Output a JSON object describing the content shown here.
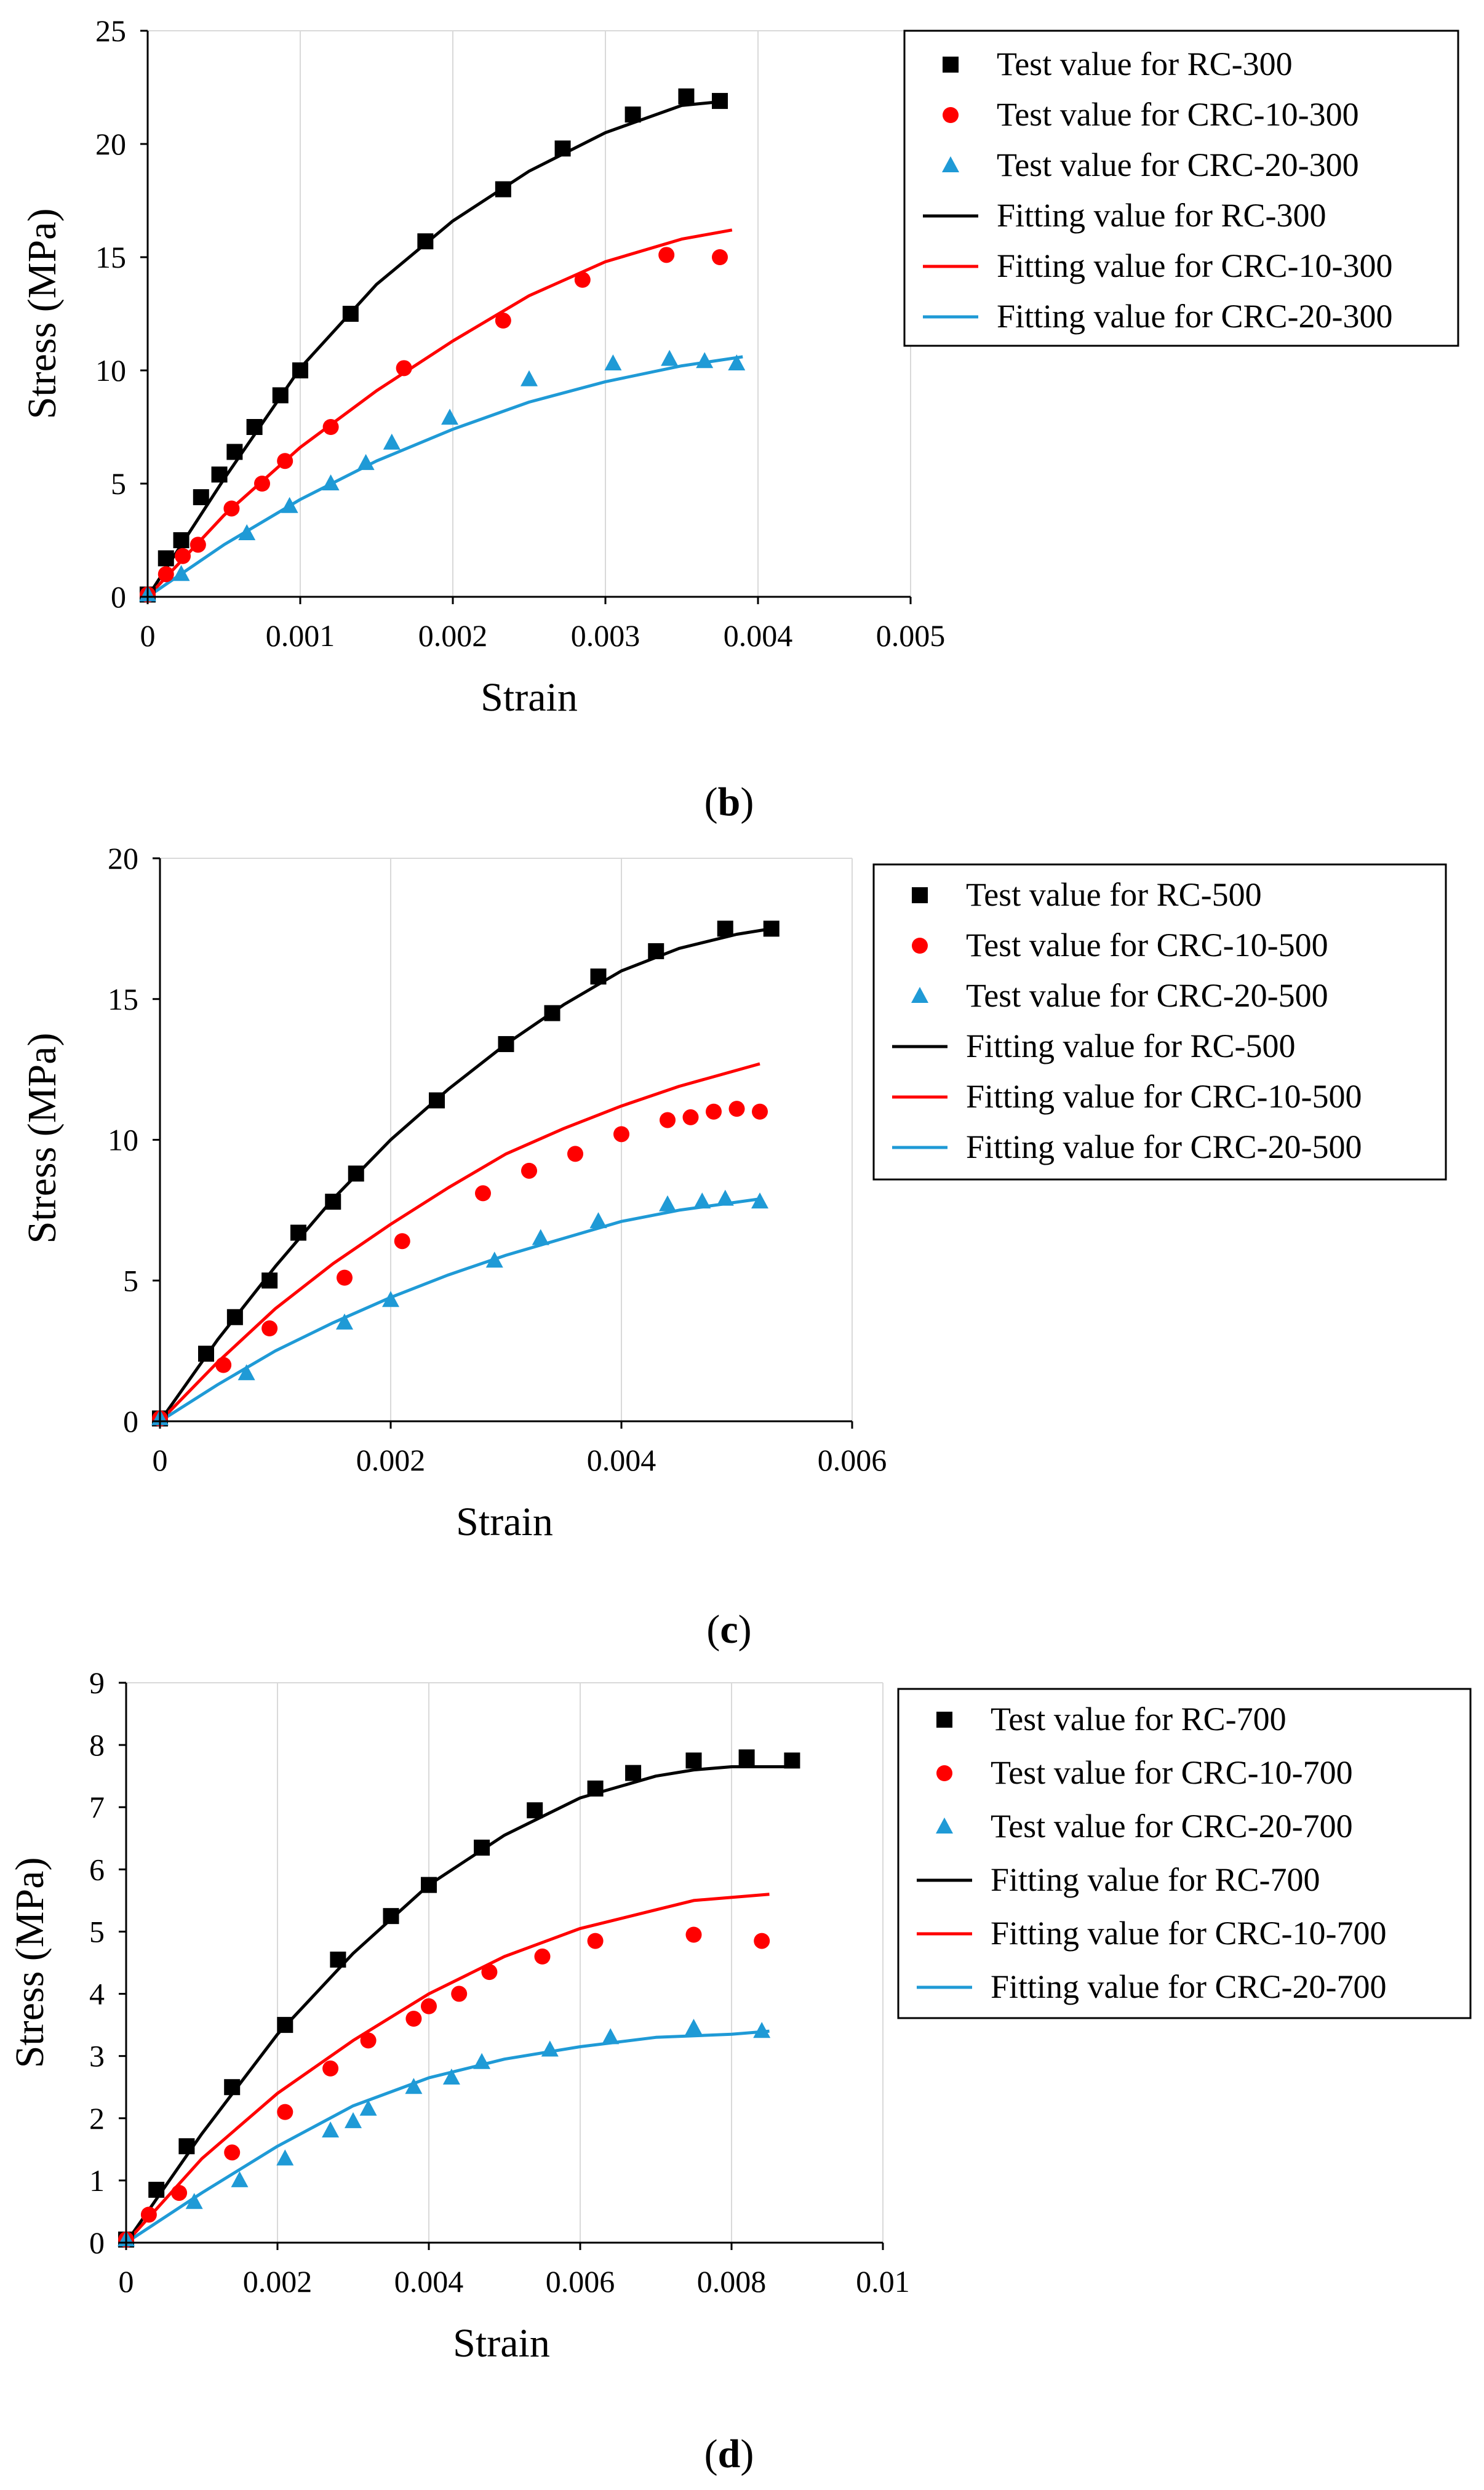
{
  "colors": {
    "black_series": "#000000",
    "red_series": "#ff0000",
    "blue_series": "#1f9ad6",
    "grid": "#d9d9d9",
    "axis": "#000000"
  },
  "chart_data": [
    {
      "panel_label": "b",
      "type": "scatter",
      "xlabel": "Strain",
      "ylabel": "Stress (MPa)",
      "xlim": [
        0,
        0.005
      ],
      "ylim": [
        0,
        25
      ],
      "xticks": [
        0,
        0.001,
        0.002,
        0.003,
        0.004,
        0.005
      ],
      "xtick_labels": [
        "0",
        "0.001",
        "0.002",
        "0.003",
        "0.004",
        "0.005"
      ],
      "yticks": [
        0,
        5,
        10,
        15,
        20,
        25
      ],
      "ytick_labels": [
        "0",
        "5",
        "10",
        "15",
        "20",
        "25"
      ],
      "grid": "vertical",
      "legend_position": "right",
      "series": [
        {
          "name": "Test value for RC-300",
          "kind": "marker",
          "marker": "square",
          "color": "#000000",
          "x": [
            0,
            0.00012,
            0.00022,
            0.00035,
            0.00047,
            0.00057,
            0.0007,
            0.00087,
            0.001,
            0.00133,
            0.00182,
            0.00233,
            0.00272,
            0.00318,
            0.00353,
            0.00375
          ],
          "y": [
            0.1,
            1.7,
            2.5,
            4.4,
            5.4,
            6.4,
            7.5,
            8.9,
            10.0,
            12.5,
            15.7,
            18.0,
            19.8,
            21.3,
            22.1,
            21.9
          ]
        },
        {
          "name": "Test value for CRC-10-300",
          "kind": "marker",
          "marker": "circle",
          "color": "#ff0000",
          "x": [
            0,
            0.00012,
            0.00023,
            0.00033,
            0.00055,
            0.00075,
            0.0009,
            0.0012,
            0.00168,
            0.00233,
            0.00285,
            0.0034,
            0.00375
          ],
          "y": [
            0.1,
            1.0,
            1.8,
            2.3,
            3.9,
            5.0,
            6.0,
            7.5,
            10.1,
            12.2,
            14.0,
            15.1,
            15.0
          ]
        },
        {
          "name": "Test value for CRC-20-300",
          "kind": "marker",
          "marker": "triangle",
          "color": "#1f9ad6",
          "x": [
            0,
            0.00022,
            0.00065,
            0.00093,
            0.0012,
            0.00143,
            0.0016,
            0.00198,
            0.0025,
            0.00305,
            0.00342,
            0.00365,
            0.00386
          ],
          "y": [
            0.1,
            1.0,
            2.8,
            4.0,
            5.0,
            5.9,
            6.8,
            7.9,
            9.6,
            10.3,
            10.5,
            10.4,
            10.3
          ]
        },
        {
          "name": "Fitting value for RC-300",
          "kind": "line",
          "color": "#000000",
          "x": [
            0,
            0.0005,
            0.001,
            0.0015,
            0.002,
            0.0025,
            0.003,
            0.0035,
            0.0038
          ],
          "y": [
            0,
            5.2,
            10.1,
            13.8,
            16.6,
            18.8,
            20.5,
            21.7,
            21.9
          ]
        },
        {
          "name": "Fitting value for CRC-10-300",
          "kind": "line",
          "color": "#ff0000",
          "x": [
            0,
            0.0005,
            0.001,
            0.0015,
            0.002,
            0.0025,
            0.003,
            0.0035,
            0.00383
          ],
          "y": [
            0,
            3.6,
            6.6,
            9.1,
            11.3,
            13.3,
            14.8,
            15.8,
            16.2
          ]
        },
        {
          "name": "Fitting value for CRC-20-300",
          "kind": "line",
          "color": "#1f9ad6",
          "x": [
            0,
            0.0005,
            0.001,
            0.0015,
            0.002,
            0.0025,
            0.003,
            0.0035,
            0.0039
          ],
          "y": [
            0,
            2.3,
            4.3,
            6.0,
            7.4,
            8.6,
            9.5,
            10.2,
            10.6
          ]
        }
      ]
    },
    {
      "panel_label": "c",
      "type": "scatter",
      "xlabel": "Strain",
      "ylabel": "Stress (MPa)",
      "xlim": [
        0,
        0.006
      ],
      "ylim": [
        0,
        20
      ],
      "xticks": [
        0,
        0.002,
        0.004,
        0.006
      ],
      "xtick_labels": [
        "0",
        "0.002",
        "0.004",
        "0.006"
      ],
      "yticks": [
        0,
        5,
        10,
        15,
        20
      ],
      "ytick_labels": [
        "0",
        "5",
        "10",
        "15",
        "20"
      ],
      "grid": "vertical",
      "legend_position": "right",
      "series": [
        {
          "name": "Test value for RC-500",
          "kind": "marker",
          "marker": "square",
          "color": "#000000",
          "x": [
            0,
            0.0004,
            0.00065,
            0.00095,
            0.0012,
            0.0015,
            0.0017,
            0.0024,
            0.003,
            0.0034,
            0.0038,
            0.0043,
            0.0049,
            0.0053
          ],
          "y": [
            0.1,
            2.4,
            3.7,
            5.0,
            6.7,
            7.8,
            8.8,
            11.4,
            13.4,
            14.5,
            15.8,
            16.7,
            17.5,
            17.5
          ]
        },
        {
          "name": "Test value for CRC-10-500",
          "kind": "marker",
          "marker": "circle",
          "color": "#ff0000",
          "x": [
            0,
            0.00055,
            0.00095,
            0.0016,
            0.0021,
            0.0028,
            0.0032,
            0.0036,
            0.004,
            0.0044,
            0.0046,
            0.0048,
            0.005,
            0.0052
          ],
          "y": [
            0.1,
            2.0,
            3.3,
            5.1,
            6.4,
            8.1,
            8.9,
            9.5,
            10.2,
            10.7,
            10.8,
            11.0,
            11.1,
            11.0
          ]
        },
        {
          "name": "Test value for CRC-20-500",
          "kind": "marker",
          "marker": "triangle",
          "color": "#1f9ad6",
          "x": [
            0,
            0.00075,
            0.0016,
            0.002,
            0.0029,
            0.0033,
            0.0038,
            0.0044,
            0.0047,
            0.0049,
            0.0052
          ],
          "y": [
            0.1,
            1.7,
            3.5,
            4.3,
            5.7,
            6.5,
            7.1,
            7.7,
            7.8,
            7.9,
            7.8
          ]
        },
        {
          "name": "Fitting value for RC-500",
          "kind": "line",
          "color": "#000000",
          "x": [
            0,
            0.0005,
            0.001,
            0.0015,
            0.002,
            0.0025,
            0.003,
            0.0035,
            0.004,
            0.0045,
            0.005,
            0.0053
          ],
          "y": [
            0,
            2.9,
            5.5,
            7.9,
            10.0,
            11.8,
            13.4,
            14.8,
            16.0,
            16.8,
            17.3,
            17.5
          ]
        },
        {
          "name": "Fitting value for CRC-10-500",
          "kind": "line",
          "color": "#ff0000",
          "x": [
            0,
            0.0005,
            0.001,
            0.0015,
            0.002,
            0.0025,
            0.003,
            0.0035,
            0.004,
            0.0045,
            0.0052
          ],
          "y": [
            0,
            2.1,
            4.0,
            5.6,
            7.0,
            8.3,
            9.5,
            10.4,
            11.2,
            11.9,
            12.7
          ]
        },
        {
          "name": "Fitting value for CRC-20-500",
          "kind": "line",
          "color": "#1f9ad6",
          "x": [
            0,
            0.0005,
            0.001,
            0.0015,
            0.002,
            0.0025,
            0.003,
            0.0035,
            0.004,
            0.0045,
            0.0052
          ],
          "y": [
            0,
            1.3,
            2.5,
            3.5,
            4.4,
            5.2,
            5.9,
            6.5,
            7.1,
            7.5,
            7.9
          ]
        }
      ]
    },
    {
      "panel_label": "d",
      "type": "scatter",
      "xlabel": "Strain",
      "ylabel": "Stress (MPa)",
      "xlim": [
        0,
        0.01
      ],
      "ylim": [
        0,
        9
      ],
      "xticks": [
        0,
        0.002,
        0.004,
        0.006,
        0.008,
        0.01
      ],
      "xtick_labels": [
        "0",
        "0.002",
        "0.004",
        "0.006",
        "0.008",
        "0.01"
      ],
      "yticks": [
        0,
        1,
        2,
        3,
        4,
        5,
        6,
        7,
        8,
        9
      ],
      "ytick_labels": [
        "0",
        "1",
        "2",
        "3",
        "4",
        "5",
        "6",
        "7",
        "8",
        "9"
      ],
      "grid": "vertical",
      "legend_position": "right",
      "series": [
        {
          "name": "Test value for RC-700",
          "kind": "marker",
          "marker": "square",
          "color": "#000000",
          "x": [
            0,
            0.0004,
            0.0008,
            0.0014,
            0.0021,
            0.0028,
            0.0035,
            0.004,
            0.0047,
            0.0054,
            0.0062,
            0.0067,
            0.0075,
            0.0082,
            0.0088
          ],
          "y": [
            0.05,
            0.85,
            1.55,
            2.5,
            3.5,
            4.55,
            5.25,
            5.75,
            6.35,
            6.95,
            7.3,
            7.55,
            7.75,
            7.8,
            7.75
          ]
        },
        {
          "name": "Test value for CRC-10-700",
          "kind": "marker",
          "marker": "circle",
          "color": "#ff0000",
          "x": [
            0,
            0.0003,
            0.0007,
            0.0014,
            0.0021,
            0.0027,
            0.0032,
            0.0038,
            0.004,
            0.0044,
            0.0048,
            0.0055,
            0.0062,
            0.0075,
            0.0084
          ],
          "y": [
            0.05,
            0.45,
            0.8,
            1.45,
            2.1,
            2.8,
            3.25,
            3.6,
            3.8,
            4.0,
            4.35,
            4.6,
            4.85,
            4.95,
            4.85
          ]
        },
        {
          "name": "Test value for CRC-20-700",
          "kind": "marker",
          "marker": "triangle",
          "color": "#1f9ad6",
          "x": [
            0,
            0.0009,
            0.0015,
            0.0021,
            0.0027,
            0.003,
            0.0032,
            0.0038,
            0.0043,
            0.0047,
            0.0056,
            0.0064,
            0.0075,
            0.0084
          ],
          "y": [
            0.05,
            0.65,
            1.0,
            1.35,
            1.8,
            1.95,
            2.15,
            2.5,
            2.65,
            2.9,
            3.1,
            3.3,
            3.45,
            3.4
          ]
        },
        {
          "name": "Fitting value for RC-700",
          "kind": "line",
          "color": "#000000",
          "x": [
            0,
            0.001,
            0.002,
            0.003,
            0.004,
            0.005,
            0.006,
            0.007,
            0.0075,
            0.008,
            0.0088
          ],
          "y": [
            0,
            1.75,
            3.35,
            4.65,
            5.75,
            6.55,
            7.15,
            7.5,
            7.6,
            7.65,
            7.65
          ]
        },
        {
          "name": "Fitting value for CRC-10-700",
          "kind": "line",
          "color": "#ff0000",
          "x": [
            0,
            0.001,
            0.002,
            0.003,
            0.004,
            0.005,
            0.006,
            0.007,
            0.0075,
            0.0085
          ],
          "y": [
            0,
            1.35,
            2.4,
            3.25,
            4.0,
            4.6,
            5.05,
            5.35,
            5.5,
            5.6
          ]
        },
        {
          "name": "Fitting value for CRC-20-700",
          "kind": "line",
          "color": "#1f9ad6",
          "x": [
            0,
            0.001,
            0.002,
            0.003,
            0.004,
            0.005,
            0.006,
            0.007,
            0.008,
            0.0085
          ],
          "y": [
            0,
            0.8,
            1.55,
            2.2,
            2.65,
            2.95,
            3.15,
            3.3,
            3.35,
            3.4
          ]
        }
      ]
    }
  ]
}
